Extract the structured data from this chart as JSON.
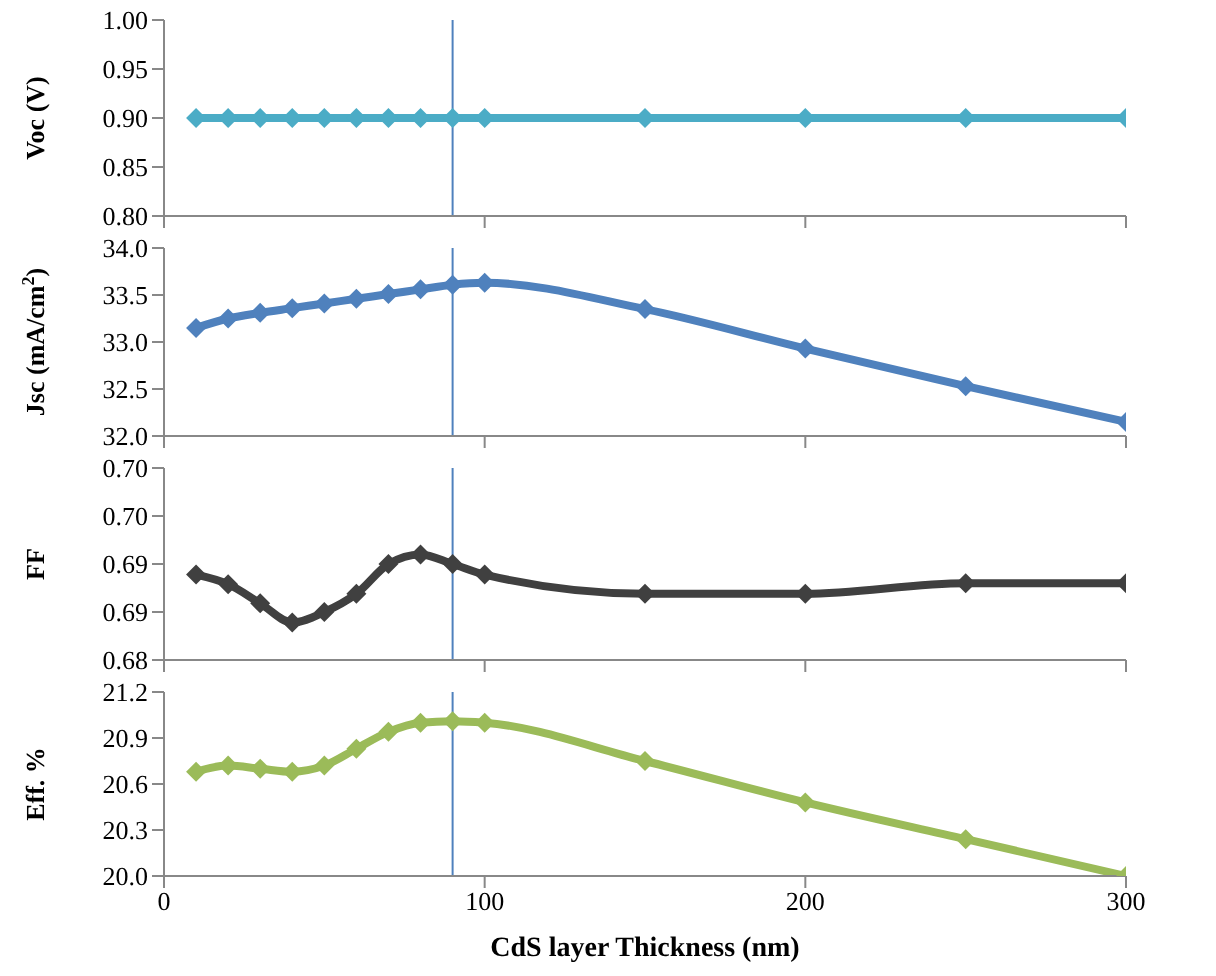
{
  "chart_data": [
    {
      "type": "line",
      "ylabel": "Voc (V)",
      "x": [
        10,
        20,
        30,
        40,
        50,
        60,
        70,
        80,
        90,
        100,
        150,
        200,
        250,
        300
      ],
      "xlim": [
        0,
        300
      ],
      "xticks": [
        0,
        100,
        200,
        300
      ],
      "ylim": [
        0.8,
        1.0
      ],
      "yticks": [
        {
          "value": 0.8,
          "label": "0.80"
        },
        {
          "value": 0.85,
          "label": "0.85"
        },
        {
          "value": 0.9,
          "label": "0.90"
        },
        {
          "value": 0.95,
          "label": "0.95"
        },
        {
          "value": 1.0,
          "label": "1.00"
        }
      ],
      "tick_labels": "y",
      "marker": "diamond",
      "series": [
        {
          "color": "#4bacc6",
          "values": [
            0.9,
            0.9,
            0.9,
            0.9,
            0.9,
            0.9,
            0.9,
            0.9,
            0.9,
            0.9,
            0.9,
            0.9,
            0.9,
            0.9
          ]
        }
      ],
      "ref_lines": [
        {
          "axis": "x",
          "value": 90,
          "color": "#4f81bd"
        }
      ]
    },
    {
      "type": "line",
      "ylabel": "Jsc (mA/cm$^{2}$)",
      "x": [
        10,
        20,
        30,
        40,
        50,
        60,
        70,
        80,
        90,
        100,
        150,
        200,
        250,
        300
      ],
      "xlim": [
        0,
        300
      ],
      "xticks": [
        0,
        100,
        200,
        300
      ],
      "ylim": [
        32,
        34
      ],
      "yticks": [
        {
          "value": 32,
          "label": "32.0"
        },
        {
          "value": 32.5,
          "label": "32.5"
        },
        {
          "value": 33,
          "label": "33.0"
        },
        {
          "value": 33.5,
          "label": "33.5"
        },
        {
          "value": 34,
          "label": "34.0"
        }
      ],
      "tick_labels": "y",
      "marker": "diamond",
      "series": [
        {
          "color": "#4f81bd",
          "values": [
            33.15,
            33.25,
            33.31,
            33.36,
            33.41,
            33.46,
            33.51,
            33.56,
            33.61,
            33.63,
            33.35,
            32.93,
            32.53,
            32.15
          ]
        }
      ],
      "ref_lines": [
        {
          "axis": "x",
          "value": 90,
          "color": "#4f81bd"
        }
      ]
    },
    {
      "type": "line",
      "ylabel": "FF",
      "x": [
        10,
        20,
        30,
        40,
        50,
        60,
        70,
        80,
        90,
        100,
        150,
        200,
        250,
        300
      ],
      "xlim": [
        0,
        300
      ],
      "xticks": [
        0,
        100,
        200,
        300
      ],
      "ylim": [
        0.68,
        0.7
      ],
      "yticks": [
        {
          "value": 0.68,
          "label": "0.68"
        },
        {
          "value": 0.685,
          "label": "0.69"
        },
        {
          "value": 0.69,
          "label": "0.69"
        },
        {
          "value": 0.695,
          "label": "0.70"
        },
        {
          "value": 0.7,
          "label": "0.70"
        }
      ],
      "tick_labels": "y",
      "marker": "diamond",
      "series": [
        {
          "color": "#404040",
          "values": [
            0.6889,
            0.6879,
            0.6859,
            0.6839,
            0.685,
            0.6869,
            0.69,
            0.691,
            0.69,
            0.6889,
            0.6869,
            0.6869,
            0.688,
            0.688
          ]
        }
      ],
      "ref_lines": [
        {
          "axis": "x",
          "value": 90,
          "color": "#4f81bd"
        }
      ]
    },
    {
      "type": "line",
      "ylabel": "Eff. %",
      "xlabel": "CdS  layer Thickness (nm)",
      "x": [
        10,
        20,
        30,
        40,
        50,
        60,
        70,
        80,
        90,
        100,
        150,
        200,
        250,
        300
      ],
      "xlim": [
        0,
        300
      ],
      "xticks": [
        0,
        100,
        200,
        300
      ],
      "ylim": [
        20,
        21.2
      ],
      "yticks": [
        {
          "value": 20,
          "label": "20.0"
        },
        {
          "value": 20.3,
          "label": "20.3"
        },
        {
          "value": 20.6,
          "label": "20.6"
        },
        {
          "value": 20.9,
          "label": "20.9"
        },
        {
          "value": 21.2,
          "label": "21.2"
        }
      ],
      "marker": "diamond",
      "series": [
        {
          "color": "#9bbb59",
          "values": [
            20.68,
            20.72,
            20.7,
            20.68,
            20.72,
            20.83,
            20.94,
            21.0,
            21.01,
            21.0,
            20.75,
            20.48,
            20.24,
            20.0
          ]
        }
      ],
      "ref_lines": [
        {
          "axis": "x",
          "value": 90,
          "color": "#4f81bd"
        }
      ]
    }
  ]
}
